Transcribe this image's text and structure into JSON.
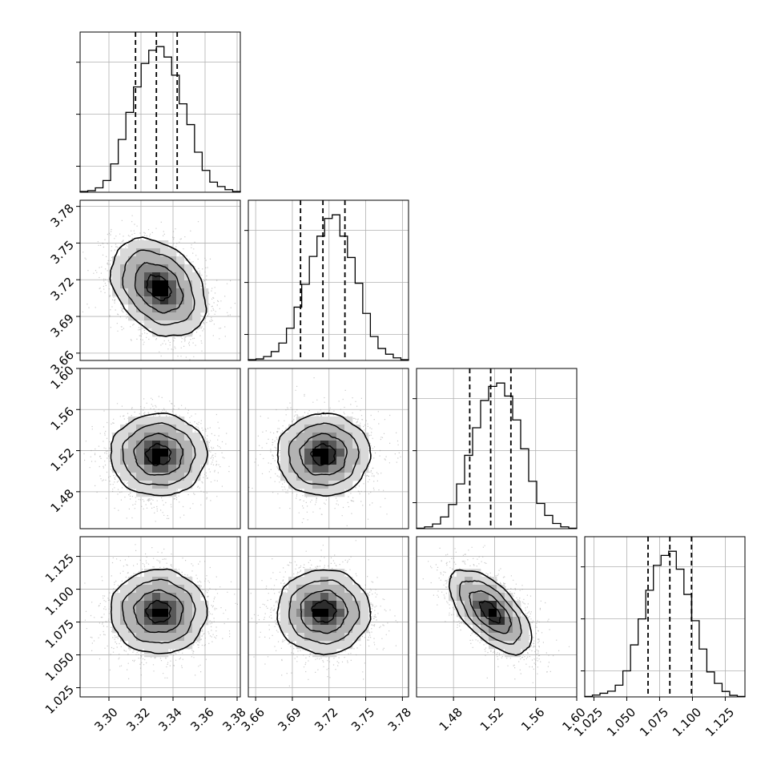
{
  "chart_data": {
    "type": "corner",
    "title": "",
    "n_parameters": 4,
    "grid": true,
    "parameters": [
      {
        "index": 0,
        "range": [
          3.282,
          3.382
        ],
        "ticks": [
          3.3,
          3.32,
          3.34,
          3.36,
          3.38
        ],
        "tick_labels": [
          "3.30",
          "3.32",
          "3.34",
          "3.36",
          "3.38"
        ],
        "quantiles": [
          3.3166,
          3.3296,
          3.3426
        ],
        "hist_counts": [
          0.3,
          0.6,
          1.7,
          4.5,
          10.9,
          20.3,
          30.7,
          40.5,
          49.5,
          54.6,
          56.0,
          52.0,
          45.0,
          34.0,
          26.0,
          15.4,
          8.4,
          3.9,
          2.2,
          1.0,
          0.3
        ],
        "hist_yticks": [
          10,
          30,
          50
        ]
      },
      {
        "index": 1,
        "range": [
          3.654,
          3.785
        ],
        "ticks": [
          3.66,
          3.69,
          3.72,
          3.75,
          3.78
        ],
        "tick_labels": [
          "3.66",
          "3.69",
          "3.72",
          "3.75",
          "3.78"
        ],
        "quantiles": [
          3.6967,
          3.715,
          3.733
        ],
        "hist_counts": [
          0.3,
          0.6,
          1.5,
          3.4,
          6.7,
          12.4,
          20.5,
          29.3,
          40.0,
          47.8,
          54.6,
          56.0,
          47.8,
          39.6,
          29.7,
          18.1,
          9.2,
          4.6,
          2.4,
          1.0,
          0.3
        ],
        "hist_yticks": [
          10,
          30,
          50
        ]
      },
      {
        "index": 2,
        "range": [
          1.444,
          1.6
        ],
        "ticks": [
          1.48,
          1.52,
          1.56,
          1.6
        ],
        "tick_labels": [
          "1.48",
          "1.52",
          "1.56",
          "1.60"
        ],
        "quantiles": [
          1.4958,
          1.5162,
          1.5359
        ],
        "hist_counts": [
          0.2,
          0.7,
          1.8,
          4.5,
          9.3,
          17.2,
          28.2,
          38.8,
          49.3,
          54.7,
          56.0,
          51.0,
          41.8,
          30.7,
          18.2,
          9.7,
          5.1,
          2.0,
          0.7,
          0.2
        ],
        "hist_yticks": [
          10,
          30,
          50
        ]
      },
      {
        "index": 3,
        "range": [
          1.018,
          1.14
        ],
        "ticks": [
          1.025,
          1.05,
          1.075,
          1.1,
          1.125
        ],
        "tick_labels": [
          "1.025",
          "1.050",
          "1.075",
          "1.100",
          "1.125"
        ],
        "quantiles": [
          1.0662,
          1.0828,
          1.0993
        ],
        "hist_counts": [
          0.2,
          0.7,
          1.4,
          2.2,
          4.5,
          10.0,
          20.0,
          30.0,
          41.0,
          50.6,
          54.4,
          56.0,
          49.1,
          39.4,
          29.3,
          18.4,
          9.6,
          5.2,
          2.1,
          0.6,
          0.2
        ],
        "hist_yticks": [
          10,
          30,
          50
        ]
      }
    ],
    "pairs": [
      {
        "x": 0,
        "y": 1,
        "mean": [
          3.331,
          3.7135
        ],
        "sd": [
          0.0148,
          0.02
        ],
        "rho": -0.32
      },
      {
        "x": 0,
        "y": 2,
        "mean": [
          3.331,
          1.5159
        ],
        "sd": [
          0.015,
          0.02
        ],
        "rho": 0.0
      },
      {
        "x": 1,
        "y": 2,
        "mean": [
          3.7155,
          1.5159
        ],
        "sd": [
          0.019,
          0.02
        ],
        "rho": 0.0
      },
      {
        "x": 0,
        "y": 3,
        "mean": [
          3.331,
          1.0828
        ],
        "sd": [
          0.015,
          0.016
        ],
        "rho": 0.0
      },
      {
        "x": 1,
        "y": 3,
        "mean": [
          3.7155,
          1.0828
        ],
        "sd": [
          0.019,
          0.016
        ],
        "rho": 0.0
      },
      {
        "x": 2,
        "y": 3,
        "mean": [
          1.5159,
          1.0828
        ],
        "sd": [
          0.02,
          0.016
        ],
        "rho": -0.62
      }
    ],
    "contour_levels": [
      0.118,
      0.393,
      0.675,
      0.865
    ],
    "colors": {
      "line": "#000000",
      "grid": "#b0b0b0",
      "points": "#8a8a8a",
      "density": [
        "#f2f2f2",
        "#d9d9d9",
        "#b3b3b3",
        "#8c8c8c",
        "#595959",
        "#2e2e2e",
        "#000000"
      ]
    }
  }
}
